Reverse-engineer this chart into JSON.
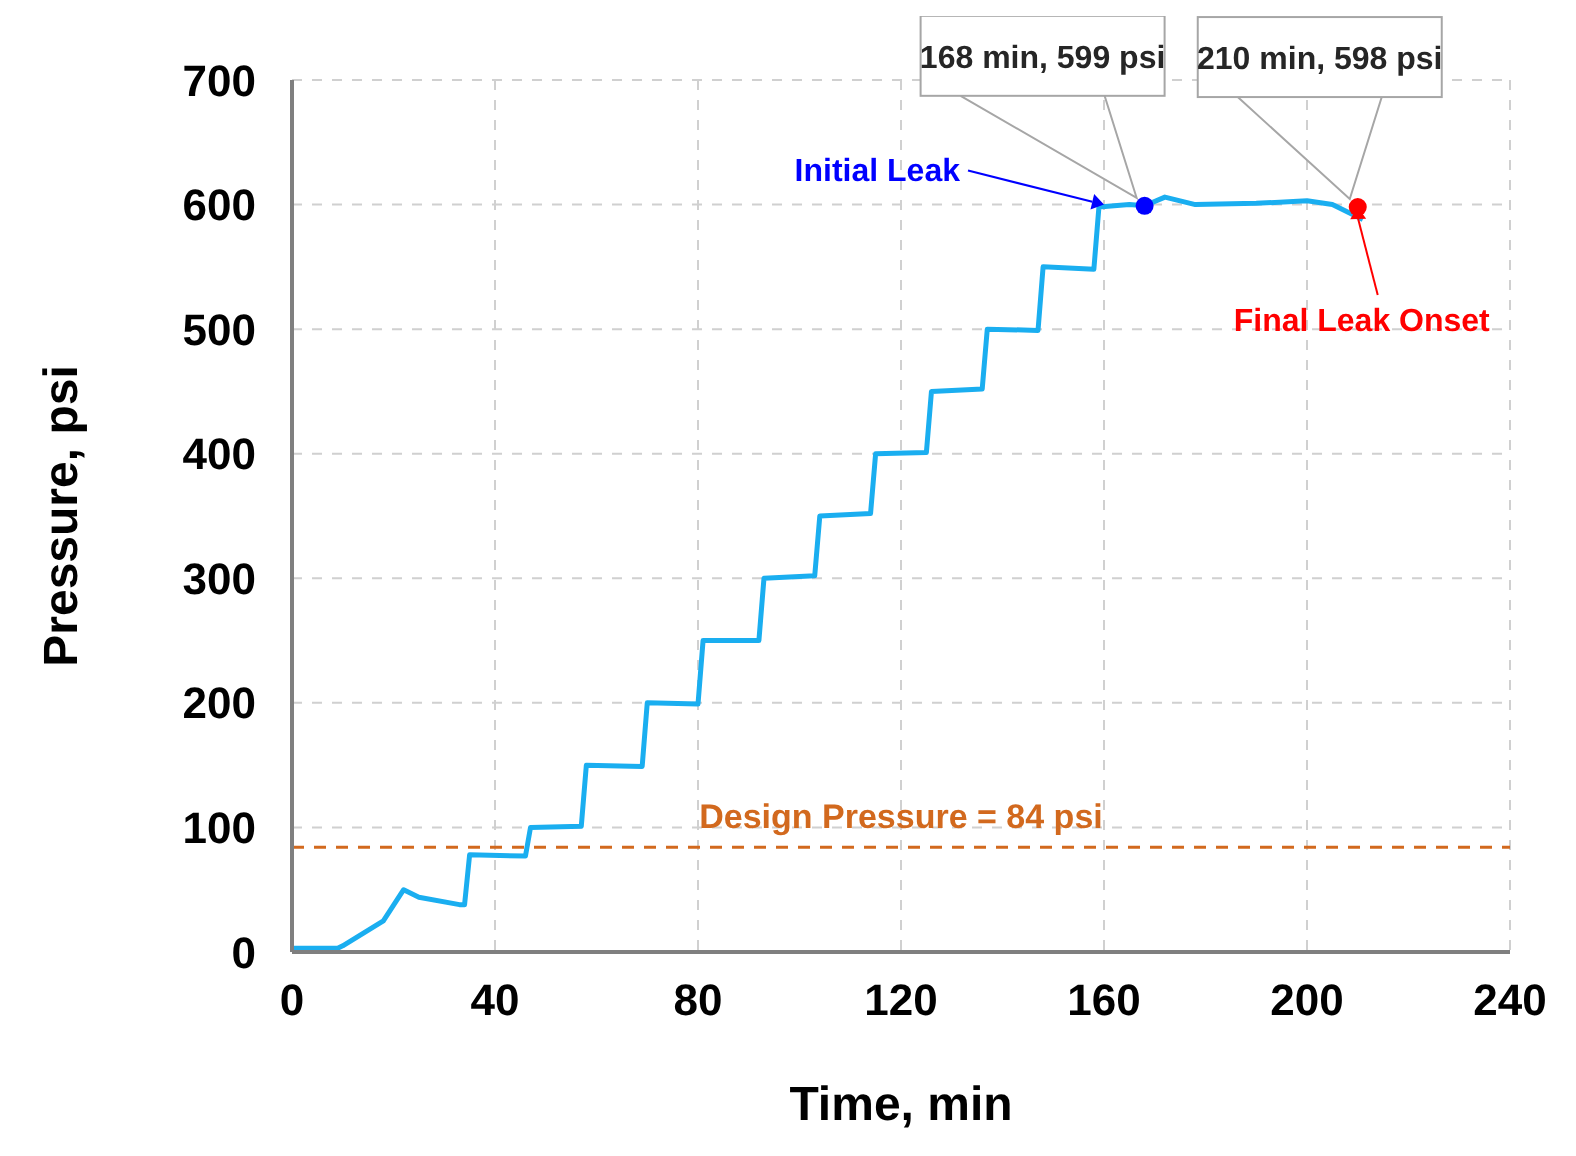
{
  "chart_data": {
    "type": "line",
    "xlabel": "Time, min",
    "ylabel": "Pressure, psi",
    "xlim": [
      0,
      240
    ],
    "xticks": [
      0,
      40,
      80,
      120,
      160,
      200,
      240
    ],
    "ylim": [
      0,
      700
    ],
    "yticks": [
      0,
      100,
      200,
      300,
      400,
      500,
      600,
      700
    ],
    "grid": true,
    "legend": false,
    "marker": "none",
    "line_style": "solid",
    "series": [
      {
        "color": "#1aaef0",
        "x": [
          0,
          9,
          10,
          14,
          18,
          22,
          25,
          33,
          34,
          35,
          46,
          47,
          57,
          58,
          69,
          70,
          80,
          81,
          92,
          93,
          103,
          104,
          114,
          115,
          125,
          126,
          136,
          137,
          147,
          148,
          158,
          159,
          165,
          168,
          172,
          178,
          190,
          200,
          205,
          211
        ],
        "values": [
          3,
          3,
          5,
          15,
          25,
          50,
          44,
          38,
          38,
          78,
          77,
          100,
          101,
          150,
          149,
          200,
          199,
          250,
          250,
          300,
          302,
          350,
          352,
          400,
          401,
          450,
          452,
          500,
          499,
          550,
          548,
          598,
          600,
          599,
          606,
          600,
          601,
          603,
          600,
          588
        ]
      },
      {
        "type": "scatter",
        "color": "#0000ff",
        "marker": "circle",
        "x": [
          168
        ],
        "values": [
          599
        ]
      },
      {
        "type": "scatter",
        "color": "#ff0000",
        "marker": "circle",
        "x": [
          210
        ],
        "values": [
          598
        ]
      }
    ],
    "ref_lines": [
      {
        "axis": "y",
        "value": 84,
        "label": "Design Pressure = 84 psi",
        "color": "#d2691e",
        "line_style": "dashed"
      }
    ],
    "annotations": [
      "168 min, 599 psi",
      "210 min, 598 psi",
      {
        "text": "Initial Leak",
        "x": 160,
        "y": 600
      },
      {
        "text": "Final Leak Onset",
        "x": 210,
        "y": 598
      }
    ]
  }
}
